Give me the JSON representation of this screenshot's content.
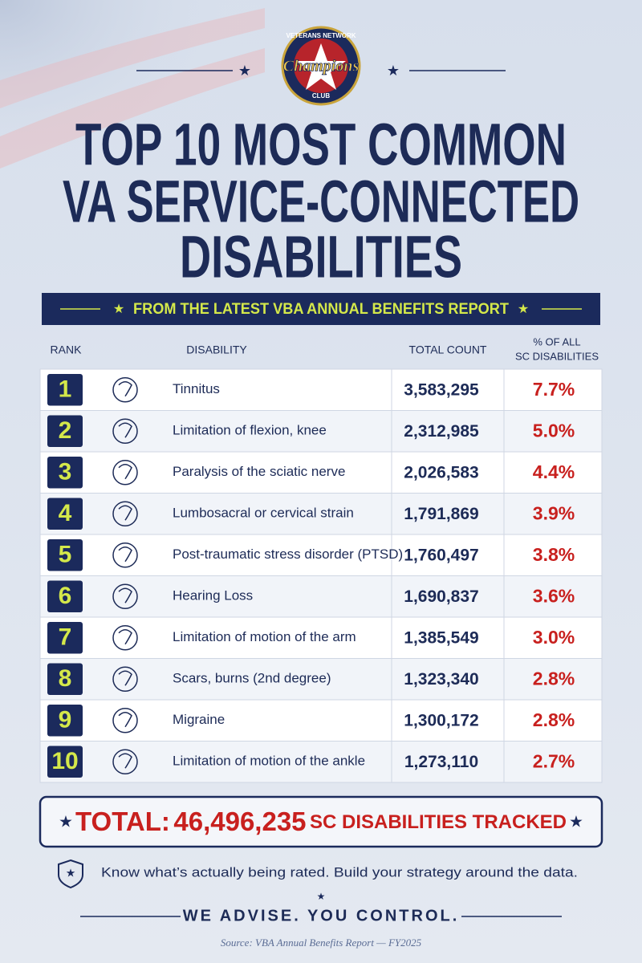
{
  "logo": {
    "top": "VETERANS NETWORK",
    "middle": "Champions",
    "bottom": "CLUB"
  },
  "header": {
    "title": [
      "TOP 10 MOST COMMON",
      "VA SERVICE-CONNECTED",
      "DISABILITIES"
    ],
    "subtitle": "FROM THE LATEST VBA ANNUAL BENEFITS REPORT"
  },
  "table": {
    "columns": [
      "RANK",
      "DISABILITY",
      "TOTAL COUNT",
      [
        "% OF ALL",
        "SC DISABILITIES"
      ]
    ],
    "rows": [
      [
        "1",
        "Tinnitus",
        "3,583,295",
        "7.7%"
      ],
      [
        "2",
        "Limitation of flexion, knee",
        "2,312,985",
        "5.0%"
      ],
      [
        "3",
        "Paralysis of the sciatic nerve",
        "2,026,583",
        "4.4%"
      ],
      [
        "4",
        "Lumbosacral or cervical strain",
        "1,791,869",
        "3.9%"
      ],
      [
        "5",
        "Post-traumatic stress disorder (PTSD)",
        "1,760,497",
        "3.8%"
      ],
      [
        "6",
        "Hearing Loss",
        "1,690,837",
        "3.6%"
      ],
      [
        "7",
        "Limitation of motion of the arm",
        "1,385,549",
        "3.0%"
      ],
      [
        "8",
        "Scars, burns (2nd degree)",
        "1,323,340",
        "2.8%"
      ],
      [
        "9",
        "Migraine",
        "1,300,172",
        "2.8%"
      ],
      [
        "10",
        "Limitation of motion of the ankle",
        "1,273,110",
        "2.7%"
      ]
    ]
  },
  "total": {
    "label": "TOTAL:",
    "value": "46,496,235",
    "suffix": "SC DISABILITIES TRACKED"
  },
  "footer": {
    "tagline": "Know what’s actually being rated. Build your strategy around the data.",
    "motto": "WE ADVISE. YOU CONTROL.",
    "source": "Source: VBA Annual Benefits Report — FY2025"
  }
}
